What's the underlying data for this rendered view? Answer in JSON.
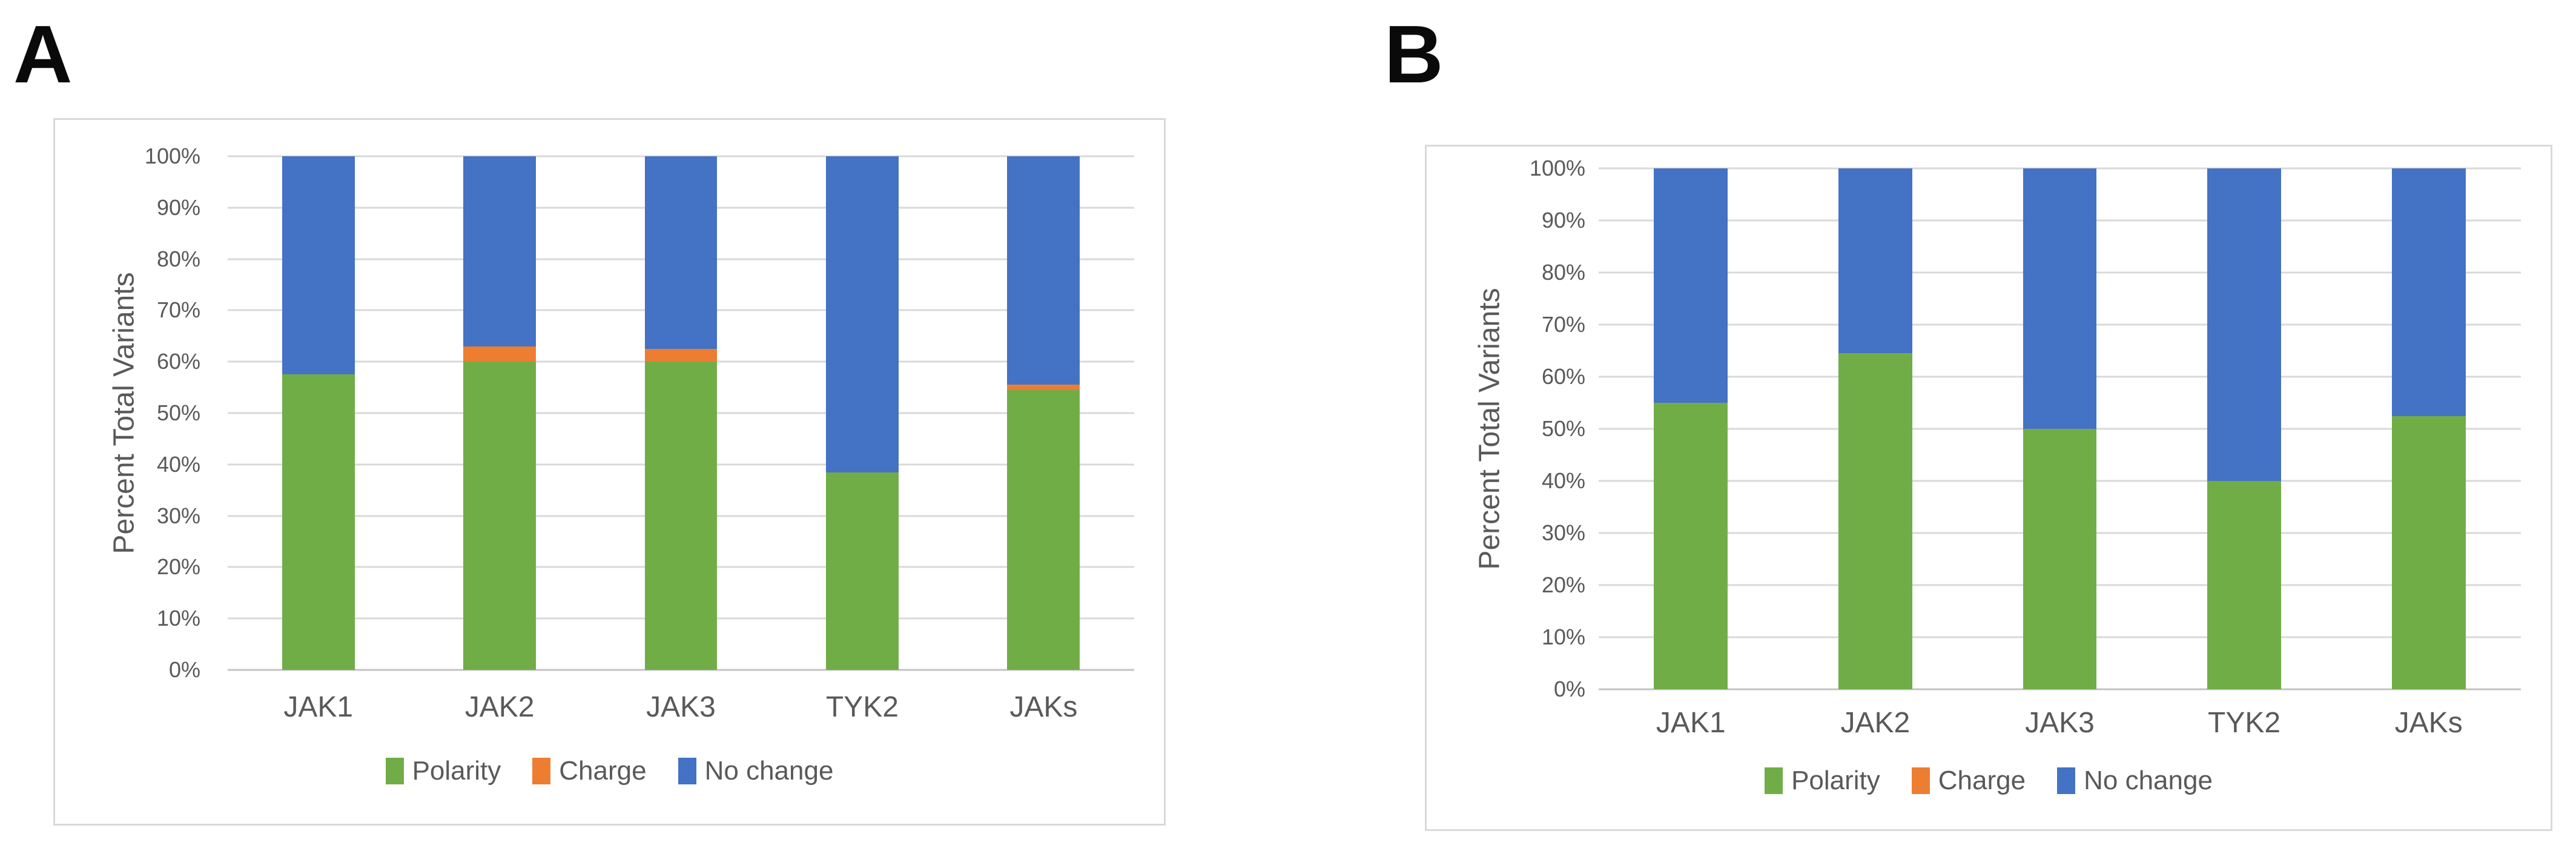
{
  "figure": {
    "panel_labels": [
      "A",
      "B"
    ],
    "text_color": "#595959",
    "gridline_color": "#D9D9D9",
    "border_color": "#D9D9D9"
  },
  "chart_data": [
    {
      "panel": "A",
      "type": "bar",
      "stacked": true,
      "percent_stacked": true,
      "title": "",
      "xlabel": "",
      "ylabel": "Percent Total Variants",
      "ylim": [
        0,
        100
      ],
      "grid": true,
      "legend_position": "bottom",
      "yticks": [
        0,
        10,
        20,
        30,
        40,
        50,
        60,
        70,
        80,
        90,
        100
      ],
      "ytick_labels": [
        "0%",
        "10%",
        "20%",
        "30%",
        "40%",
        "50%",
        "60%",
        "70%",
        "80%",
        "90%",
        "100%"
      ],
      "categories": [
        "JAK1",
        "JAK2",
        "JAK3",
        "TYK2",
        "JAKs"
      ],
      "series": [
        {
          "name": "Polarity",
          "color": "#70AD47",
          "values": [
            57.5,
            60.0,
            60.0,
            38.5,
            54.5
          ]
        },
        {
          "name": "Charge",
          "color": "#ED7D31",
          "values": [
            0.0,
            3.0,
            2.5,
            0.0,
            1.0
          ]
        },
        {
          "name": "No change",
          "color": "#4472C4",
          "values": [
            42.5,
            37.0,
            37.5,
            61.5,
            44.5
          ]
        }
      ]
    },
    {
      "panel": "B",
      "type": "bar",
      "stacked": true,
      "percent_stacked": true,
      "title": "",
      "xlabel": "",
      "ylabel": "Percent Total Variants",
      "ylim": [
        0,
        100
      ],
      "grid": true,
      "legend_position": "bottom",
      "yticks": [
        0,
        10,
        20,
        30,
        40,
        50,
        60,
        70,
        80,
        90,
        100
      ],
      "ytick_labels": [
        "0%",
        "10%",
        "20%",
        "30%",
        "40%",
        "50%",
        "60%",
        "70%",
        "80%",
        "90%",
        "100%"
      ],
      "categories": [
        "JAK1",
        "JAK2",
        "JAK3",
        "TYK2",
        "JAKs"
      ],
      "series": [
        {
          "name": "Polarity",
          "color": "#70AD47",
          "values": [
            55.0,
            64.5,
            50.0,
            40.0,
            52.5
          ]
        },
        {
          "name": "Charge",
          "color": "#ED7D31",
          "values": [
            0.0,
            0.0,
            0.0,
            0.0,
            0.0
          ]
        },
        {
          "name": "No change",
          "color": "#4472C4",
          "values": [
            45.0,
            35.5,
            50.0,
            60.0,
            47.5
          ]
        }
      ]
    }
  ]
}
